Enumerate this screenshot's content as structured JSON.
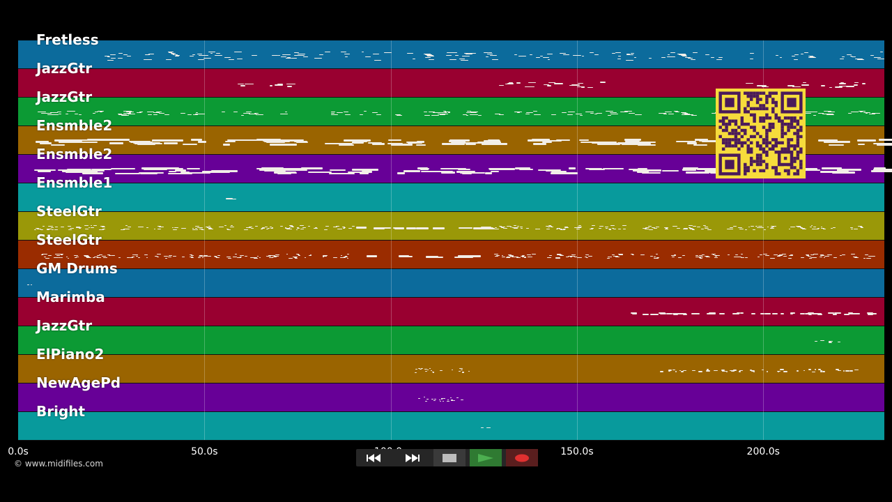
{
  "tracks": [
    {
      "label": "Fretless",
      "color": "#0c6b9c"
    },
    {
      "label": "JazzGtr",
      "color": "#990030"
    },
    {
      "label": "JazzGtr",
      "color": "#0c9a34"
    },
    {
      "label": "Ensmble2",
      "color": "#9a6400"
    },
    {
      "label": "Ensmble2",
      "color": "#670097"
    },
    {
      "label": "Ensmble1",
      "color": "#089a9c"
    },
    {
      "label": "SteelGtr",
      "color": "#9a9808"
    },
    {
      "label": "SteelGtr",
      "color": "#9a2c00"
    },
    {
      "label": "GM Drums",
      "color": "#0c6b9c"
    },
    {
      "label": "Marimba",
      "color": "#990030"
    },
    {
      "label": "JazzGtr",
      "color": "#0c9a34"
    },
    {
      "label": "ElPiano2",
      "color": "#9a6400"
    },
    {
      "label": "NewAgePd",
      "color": "#670097"
    },
    {
      "label": "Bright",
      "color": "#089a9c"
    }
  ],
  "timeline": {
    "ticks": [
      {
        "label": "0.0s",
        "time": 0
      },
      {
        "label": "50.0s",
        "time": 50
      },
      {
        "label": "100.0s",
        "time": 100
      },
      {
        "label": "150.0s",
        "time": 150
      },
      {
        "label": "200.0s",
        "time": 200
      }
    ],
    "duration": 232.5
  },
  "copyright": "© www.midifiles.com",
  "controls": {
    "rewind_icon": "rewind-icon",
    "fast_forward_icon": "fast-forward-icon",
    "stop_icon": "stop-icon",
    "play_icon": "play-icon",
    "record_icon": "record-icon",
    "play_color": "#4caf50",
    "record_color": "#e03030"
  },
  "qr_code": {
    "color": "#f6dc3c",
    "module_color": "#4a1a5a"
  }
}
